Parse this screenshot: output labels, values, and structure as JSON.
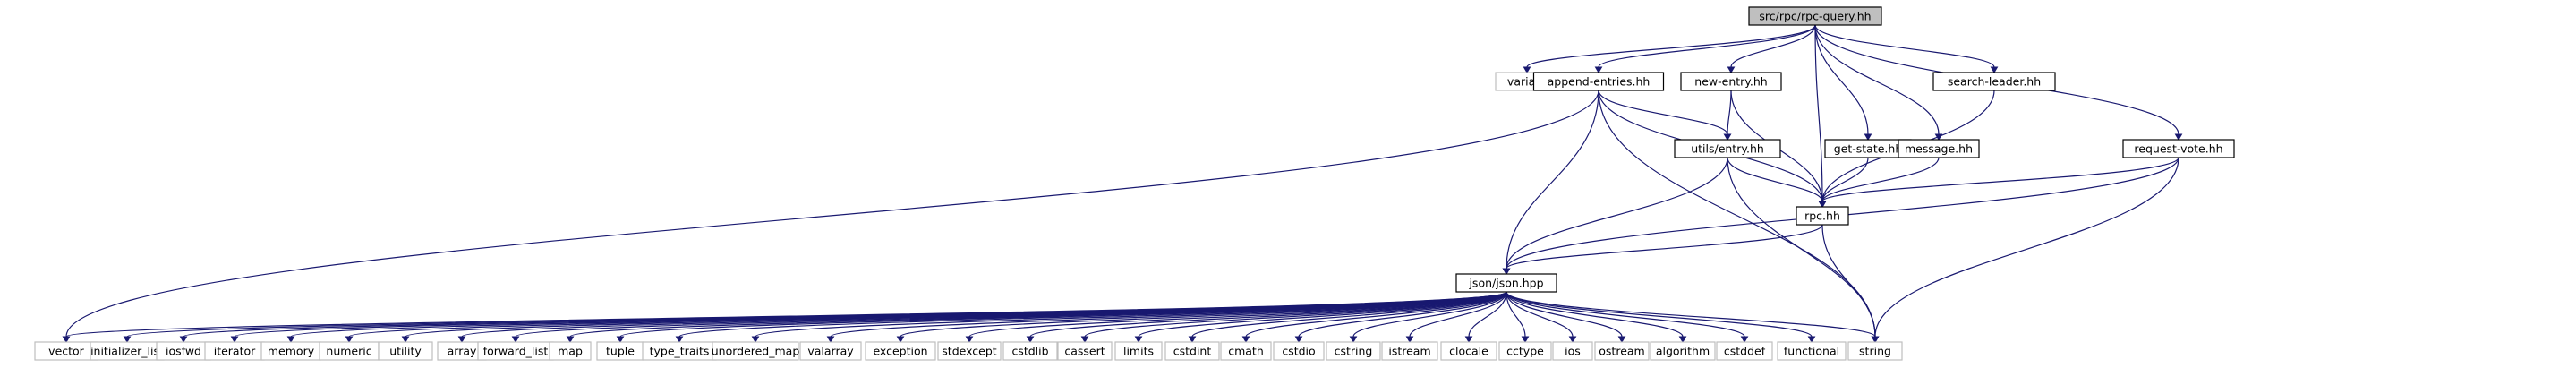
{
  "graph": {
    "nodes": [
      {
        "id": "root",
        "label": "src/rpc/rpc-query.hh",
        "kind": "root"
      },
      {
        "id": "variant",
        "label": "variant",
        "kind": "external"
      },
      {
        "id": "append",
        "label": "append-entries.hh",
        "kind": "internal"
      },
      {
        "id": "newentry",
        "label": "new-entry.hh",
        "kind": "internal"
      },
      {
        "id": "search",
        "label": "search-leader.hh",
        "kind": "internal"
      },
      {
        "id": "utilsentry",
        "label": "utils/entry.hh",
        "kind": "internal"
      },
      {
        "id": "getstate",
        "label": "get-state.hh",
        "kind": "internal"
      },
      {
        "id": "message",
        "label": "message.hh",
        "kind": "internal"
      },
      {
        "id": "reqvote",
        "label": "request-vote.hh",
        "kind": "internal"
      },
      {
        "id": "rpc",
        "label": "rpc.hh",
        "kind": "internal"
      },
      {
        "id": "json",
        "label": "json/json.hpp",
        "kind": "internal"
      },
      {
        "id": "vector",
        "label": "vector",
        "kind": "external"
      },
      {
        "id": "initlist",
        "label": "initializer_list",
        "kind": "external"
      },
      {
        "id": "iosfwd",
        "label": "iosfwd",
        "kind": "external"
      },
      {
        "id": "iterator",
        "label": "iterator",
        "kind": "external"
      },
      {
        "id": "memory",
        "label": "memory",
        "kind": "external"
      },
      {
        "id": "numeric",
        "label": "numeric",
        "kind": "external"
      },
      {
        "id": "utility",
        "label": "utility",
        "kind": "external"
      },
      {
        "id": "array",
        "label": "array",
        "kind": "external"
      },
      {
        "id": "fwdlist",
        "label": "forward_list",
        "kind": "external"
      },
      {
        "id": "map",
        "label": "map",
        "kind": "external"
      },
      {
        "id": "tuple",
        "label": "tuple",
        "kind": "external"
      },
      {
        "id": "typetraits",
        "label": "type_traits",
        "kind": "external"
      },
      {
        "id": "umap",
        "label": "unordered_map",
        "kind": "external"
      },
      {
        "id": "valarray",
        "label": "valarray",
        "kind": "external"
      },
      {
        "id": "exception",
        "label": "exception",
        "kind": "external"
      },
      {
        "id": "stdexcept",
        "label": "stdexcept",
        "kind": "external"
      },
      {
        "id": "cstdlib",
        "label": "cstdlib",
        "kind": "external"
      },
      {
        "id": "cassert",
        "label": "cassert",
        "kind": "external"
      },
      {
        "id": "limits",
        "label": "limits",
        "kind": "external"
      },
      {
        "id": "cstdint",
        "label": "cstdint",
        "kind": "external"
      },
      {
        "id": "cmath",
        "label": "cmath",
        "kind": "external"
      },
      {
        "id": "cstdio",
        "label": "cstdio",
        "kind": "external"
      },
      {
        "id": "cstring",
        "label": "cstring",
        "kind": "external"
      },
      {
        "id": "istream",
        "label": "istream",
        "kind": "external"
      },
      {
        "id": "clocale",
        "label": "clocale",
        "kind": "external"
      },
      {
        "id": "cctype",
        "label": "cctype",
        "kind": "external"
      },
      {
        "id": "ios",
        "label": "ios",
        "kind": "external"
      },
      {
        "id": "ostream",
        "label": "ostream",
        "kind": "external"
      },
      {
        "id": "algorithm",
        "label": "algorithm",
        "kind": "external"
      },
      {
        "id": "cstddef",
        "label": "cstddef",
        "kind": "external"
      },
      {
        "id": "functional",
        "label": "functional",
        "kind": "external"
      },
      {
        "id": "string",
        "label": "string",
        "kind": "external"
      }
    ],
    "edges": [
      [
        "root",
        "variant"
      ],
      [
        "root",
        "append"
      ],
      [
        "root",
        "newentry"
      ],
      [
        "root",
        "search"
      ],
      [
        "root",
        "rpc"
      ],
      [
        "root",
        "getstate"
      ],
      [
        "root",
        "message"
      ],
      [
        "root",
        "reqvote"
      ],
      [
        "append",
        "utilsentry"
      ],
      [
        "append",
        "rpc"
      ],
      [
        "append",
        "json"
      ],
      [
        "append",
        "vector"
      ],
      [
        "append",
        "string"
      ],
      [
        "newentry",
        "utilsentry"
      ],
      [
        "newentry",
        "rpc"
      ],
      [
        "search",
        "rpc"
      ],
      [
        "utilsentry",
        "rpc"
      ],
      [
        "utilsentry",
        "json"
      ],
      [
        "utilsentry",
        "string"
      ],
      [
        "getstate",
        "rpc"
      ],
      [
        "message",
        "rpc"
      ],
      [
        "reqvote",
        "rpc"
      ],
      [
        "reqvote",
        "json"
      ],
      [
        "reqvote",
        "string"
      ],
      [
        "rpc",
        "json"
      ],
      [
        "rpc",
        "string"
      ],
      [
        "json",
        "vector"
      ],
      [
        "json",
        "initlist"
      ],
      [
        "json",
        "iosfwd"
      ],
      [
        "json",
        "iterator"
      ],
      [
        "json",
        "memory"
      ],
      [
        "json",
        "numeric"
      ],
      [
        "json",
        "utility"
      ],
      [
        "json",
        "array"
      ],
      [
        "json",
        "fwdlist"
      ],
      [
        "json",
        "map"
      ],
      [
        "json",
        "tuple"
      ],
      [
        "json",
        "typetraits"
      ],
      [
        "json",
        "umap"
      ],
      [
        "json",
        "valarray"
      ],
      [
        "json",
        "exception"
      ],
      [
        "json",
        "stdexcept"
      ],
      [
        "json",
        "cstdlib"
      ],
      [
        "json",
        "cassert"
      ],
      [
        "json",
        "limits"
      ],
      [
        "json",
        "cstdint"
      ],
      [
        "json",
        "cmath"
      ],
      [
        "json",
        "cstdio"
      ],
      [
        "json",
        "cstring"
      ],
      [
        "json",
        "istream"
      ],
      [
        "json",
        "clocale"
      ],
      [
        "json",
        "cctype"
      ],
      [
        "json",
        "ios"
      ],
      [
        "json",
        "ostream"
      ],
      [
        "json",
        "algorithm"
      ],
      [
        "json",
        "cstddef"
      ],
      [
        "json",
        "functional"
      ],
      [
        "json",
        "string"
      ]
    ]
  }
}
